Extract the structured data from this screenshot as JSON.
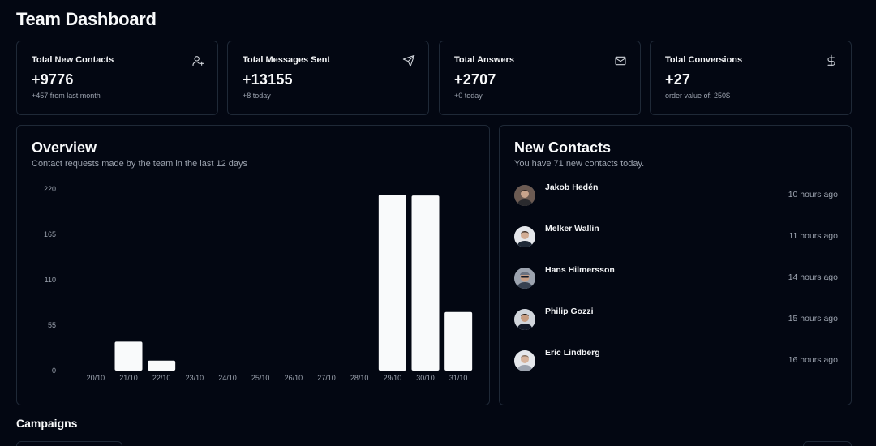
{
  "page": {
    "title": "Team Dashboard"
  },
  "stats": [
    {
      "label": "Total New Contacts",
      "value": "+9776",
      "sub": "+457 from last month",
      "icon": "user-plus-icon"
    },
    {
      "label": "Total Messages Sent",
      "value": "+13155",
      "sub": "+8 today",
      "icon": "send-icon"
    },
    {
      "label": "Total Answers",
      "value": "+2707",
      "sub": "+0 today",
      "icon": "mail-icon"
    },
    {
      "label": "Total Conversions",
      "value": "+27",
      "sub": "order value of: 250$",
      "icon": "dollar-icon"
    }
  ],
  "overview": {
    "title": "Overview",
    "description": "Contact requests made by the team in the last 12 days"
  },
  "chart_data": {
    "type": "bar",
    "categories": [
      "20/10",
      "21/10",
      "22/10",
      "23/10",
      "24/10",
      "25/10",
      "26/10",
      "27/10",
      "28/10",
      "29/10",
      "30/10",
      "31/10"
    ],
    "values": [
      0,
      35,
      12,
      0,
      0,
      0,
      0,
      0,
      0,
      213,
      212,
      71
    ],
    "yticks": [
      "0",
      "55",
      "110",
      "165",
      "220"
    ],
    "ylim": [
      0,
      220
    ],
    "bar_color": "#f9fafb",
    "title": "",
    "xlabel": "",
    "ylabel": ""
  },
  "contacts": {
    "title": "New Contacts",
    "description": "You have 71 new contacts today.",
    "items": [
      {
        "name": "Jakob Hedén",
        "time": "10 hours ago"
      },
      {
        "name": "Melker Wallin",
        "time": "11 hours ago"
      },
      {
        "name": "Hans Hilmersson",
        "time": "14 hours ago"
      },
      {
        "name": "Philip Gozzi",
        "time": "15 hours ago"
      },
      {
        "name": "Eric Lindberg",
        "time": "16 hours ago"
      }
    ]
  },
  "campaigns": {
    "title": "Campaigns"
  }
}
